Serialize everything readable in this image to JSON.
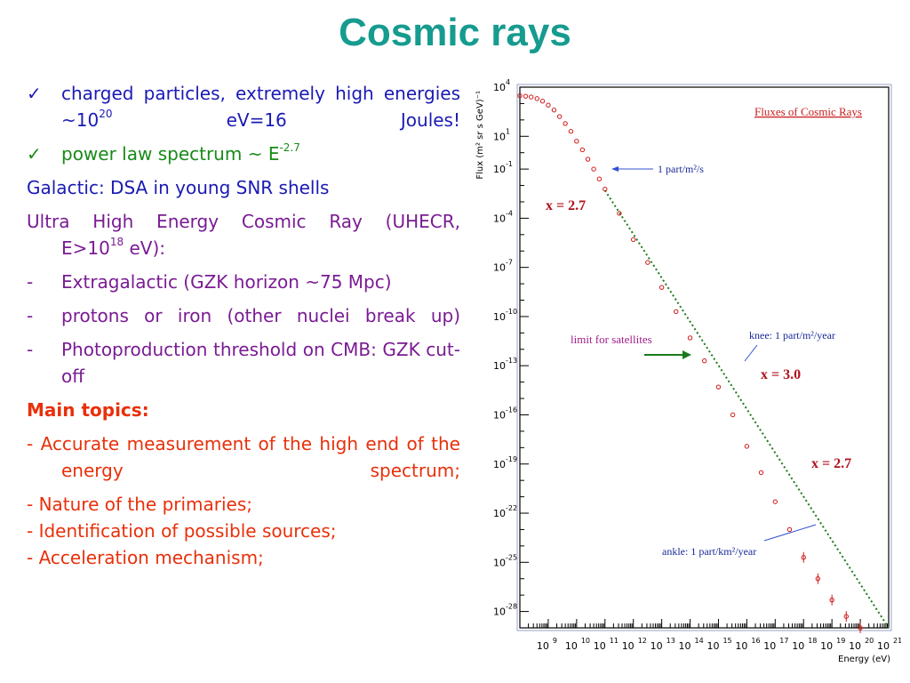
{
  "title": "Cosmic rays",
  "bullets": {
    "check": "✓",
    "dash": "-",
    "item1": {
      "text": "charged particles, extremely high energies ~10",
      "sup": "20",
      "after": " eV=16 Joules!"
    },
    "item2": {
      "text": "power law spectrum ~ E",
      "sup": "-2.7"
    },
    "galactic": "Galactic: DSA in young SNR shells",
    "uhecr": {
      "line1": "Ultra High Energy Cosmic Ray (UHECR,",
      "line2_pre": "E>10",
      "sup": "18",
      "line2_post": " eV):"
    },
    "extragalactic": "Extragalactic (GZK horizon ~75 Mpc)",
    "protons": "protons or iron (other nuclei break up)",
    "photo": "Photoproduction threshold on CMB: GZK cut-off"
  },
  "topics": {
    "heading": "Main topics:",
    "t1": "- Accurate measurement of the high end of the energy spectrum;",
    "t2": "- Nature of the primaries;",
    "t3": "- Identification of possible sources;",
    "t4": "- Acceleration mechanism;"
  },
  "chart_data": {
    "type": "scatter",
    "title": "Fluxes of Cosmic Rays",
    "xlabel": "Energy (eV)",
    "ylabel": "Flux (m² sr s GeV)⁻¹",
    "x_scale": "log",
    "y_scale": "log",
    "xlim": [
      100000000.0,
      1e+21
    ],
    "ylim": [
      1e-29,
      10000.0
    ],
    "x_ticks": [
      {
        "base": "10",
        "exp": "9"
      },
      {
        "base": "10",
        "exp": "10"
      },
      {
        "base": "10",
        "exp": "11"
      },
      {
        "base": "10",
        "exp": "12"
      },
      {
        "base": "10",
        "exp": "13"
      },
      {
        "base": "10",
        "exp": "14"
      },
      {
        "base": "10",
        "exp": "15"
      },
      {
        "base": "10",
        "exp": "16"
      },
      {
        "base": "10",
        "exp": "17"
      },
      {
        "base": "10",
        "exp": "18"
      },
      {
        "base": "10",
        "exp": "19"
      },
      {
        "base": "10",
        "exp": "20"
      },
      {
        "base": "10",
        "exp": "21"
      }
    ],
    "y_ticks": [
      {
        "base": "10",
        "exp": "4"
      },
      {
        "base": "10",
        "exp": "1"
      },
      {
        "base": "10",
        "exp": "-1"
      },
      {
        "base": "10",
        "exp": "-4"
      },
      {
        "base": "10",
        "exp": "-7"
      },
      {
        "base": "10",
        "exp": "-10"
      },
      {
        "base": "10",
        "exp": "-13"
      },
      {
        "base": "10",
        "exp": "-16"
      },
      {
        "base": "10",
        "exp": "-19"
      },
      {
        "base": "10",
        "exp": "-22"
      },
      {
        "base": "10",
        "exp": "-25"
      },
      {
        "base": "10",
        "exp": "-28"
      }
    ],
    "series": [
      {
        "x": [
          100000000.0,
          160000000.0,
          250000000.0,
          400000000.0,
          630000000.0,
          1000000000.0,
          1600000000.0,
          2500000000.0,
          4000000000.0,
          6300000000.0,
          10000000000.0,
          16000000000.0,
          25000000000.0,
          40000000000.0,
          63000000000.0,
          100000000000.0,
          320000000000.0,
          1000000000000.0,
          3200000000000.0,
          10000000000000.0,
          32000000000000.0,
          100000000000000.0,
          320000000000000.0,
          1000000000000000.0,
          3200000000000000.0,
          1e+16,
          3.2e+16,
          1e+17,
          3.2e+17,
          1e+18,
          3.2e+18,
          1e+19,
          3.2e+19,
          1e+20
        ],
        "y": [
          3000,
          2800,
          2500,
          2000,
          1400,
          800,
          400,
          160,
          60,
          20,
          5,
          1.5,
          0.4,
          0.1,
          0.025,
          0.006,
          0.0002,
          5e-06,
          2e-07,
          6e-09,
          2e-10,
          5e-12,
          2e-13,
          5e-15,
          1e-16,
          1.2e-18,
          3e-20,
          5e-22,
          1e-23,
          2e-25,
          1e-26,
          5e-28,
          5e-29,
          1e-29
        ]
      }
    ],
    "fit_lines": [
      {
        "from": [
          100000000000.0,
          0.005
        ],
        "to": [
          1e+21,
          1e-29
        ]
      }
    ],
    "annotations": {
      "one_part": "1 part/m²/s",
      "knee": "knee: 1 part/m²/year",
      "ankle": "ankle: 1 part/km²/year",
      "limit": "limit for satellites",
      "x27a": "x = 2.7",
      "x30": "x = 3.0",
      "x27b": "x = 2.7"
    }
  }
}
